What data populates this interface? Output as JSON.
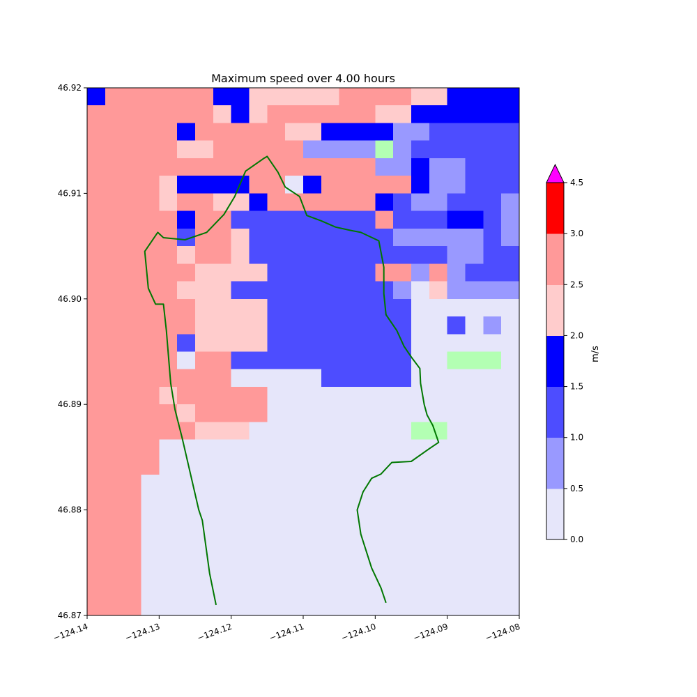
{
  "chart_data": {
    "type": "heatmap",
    "title": "Maximum speed over 4.00 hours",
    "xlabel": "",
    "ylabel": "",
    "xlim": [
      -124.14,
      -124.08
    ],
    "ylim": [
      46.87,
      46.92
    ],
    "x_ticks": [
      -124.14,
      -124.13,
      -124.12,
      -124.11,
      -124.1,
      -124.09,
      -124.08
    ],
    "x_tick_labels": [
      "−124.14",
      "−124.13",
      "−124.12",
      "−124.11",
      "−124.10",
      "−124.09",
      "−124.08"
    ],
    "y_ticks": [
      46.87,
      46.88,
      46.89,
      46.9,
      46.91,
      46.92
    ],
    "y_tick_labels": [
      "46.87",
      "46.88",
      "46.89",
      "46.90",
      "46.91",
      "46.92"
    ],
    "grid": false,
    "colorbar": {
      "label": "m/s",
      "levels": [
        0.0,
        0.5,
        1.0,
        1.5,
        2.0,
        2.5,
        3.0,
        4.5
      ],
      "tick_labels": [
        "0.0",
        "0.5",
        "1.0",
        "1.5",
        "2.0",
        "2.5",
        "3.0",
        "4.5"
      ],
      "colors": [
        "#e6e6fa",
        "#9999ff",
        "#4d4dff",
        "#0000ff",
        "#ffcccc",
        "#ff9999",
        "#ff0000"
      ],
      "extend_max_color": "#ff00ff"
    },
    "land_color": "#b3ffb3",
    "coastline_color": "#007700",
    "grid_cells": {
      "columns": 24,
      "rows": 30,
      "data": [
        "466666644555556666554444",
        "666666654566666655444444",
        "666664666665544442233333",
        "666665566666222202333333",
        "666666666666666622422333",
        "666654444661466666422333",
        "666656655466666643223332",
        "666664663333333363334432",
        "666663665333333332222232",
        "666665665333333333332233",
        "666666555533333366262333",
        "666665553333333332152222",
        "666666555533333333111111",
        "666666555533333333113121",
        "666663555533333333111111",
        "666661663333333333110001",
        "666666661111133333111111",
        "666656666611111111111111",
        "666665666611111111111111",
        "666666555111111111001111",
        "666611111111111111111111",
        "666611111111111111111111",
        "666111111111111111111111",
        "666111111111111111111111",
        "666111111111111111111111",
        "666111111111111111111111",
        "666111111111111111111111",
        "666111111111111111111111",
        "666111111111111111111111",
        "666111111111111111111111"
      ]
    }
  }
}
